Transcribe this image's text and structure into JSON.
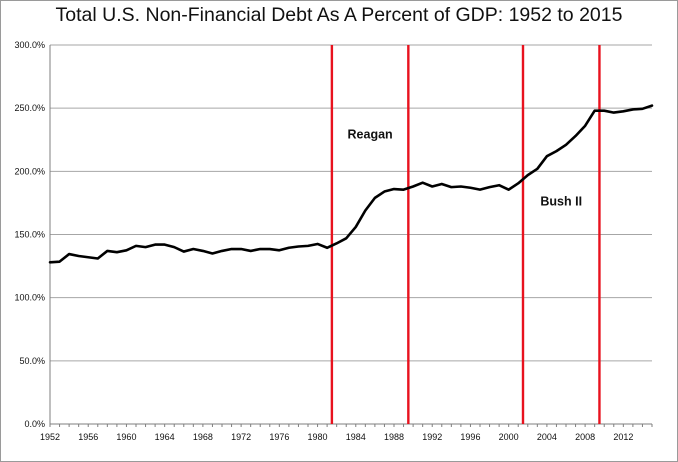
{
  "chart_data": {
    "type": "line",
    "title": "Total U.S. Non-Financial Debt As A Percent of GDP:  1952 to 2015",
    "xlabel": "",
    "ylabel": "",
    "xlim": [
      1952,
      2015
    ],
    "ylim": [
      0,
      300
    ],
    "grid": true,
    "legend": "none",
    "yticks": [
      "0.0%",
      "50.0%",
      "100.0%",
      "150.0%",
      "200.0%",
      "250.0%",
      "300.0%"
    ],
    "ytick_values": [
      0,
      50,
      100,
      150,
      200,
      250,
      300
    ],
    "xticks": [
      "1952",
      "1956",
      "1960",
      "1964",
      "1968",
      "1972",
      "1976",
      "1980",
      "1984",
      "1988",
      "1992",
      "1996",
      "2000",
      "2004",
      "2008",
      "2012"
    ],
    "xtick_values": [
      1952,
      1956,
      1960,
      1964,
      1968,
      1972,
      1976,
      1980,
      1984,
      1988,
      1992,
      1996,
      2000,
      2004,
      2008,
      2012
    ],
    "series": [
      {
        "x": [
          1952,
          1953,
          1954,
          1955,
          1956,
          1957,
          1958,
          1959,
          1960,
          1961,
          1962,
          1963,
          1964,
          1965,
          1966,
          1967,
          1968,
          1969,
          1970,
          1971,
          1972,
          1973,
          1974,
          1975,
          1976,
          1977,
          1978,
          1979,
          1980,
          1981,
          1982,
          1983,
          1984,
          1985,
          1986,
          1987,
          1988,
          1989,
          1990,
          1991,
          1992,
          1993,
          1994,
          1995,
          1996,
          1997,
          1998,
          1999,
          2000,
          2001,
          2002,
          2003,
          2004,
          2005,
          2006,
          2007,
          2008,
          2009,
          2010,
          2011,
          2012,
          2013,
          2014,
          2015
        ],
        "values": [
          128,
          128.5,
          134.5,
          133,
          132,
          131,
          137,
          136,
          137.5,
          141,
          140,
          142,
          142,
          140,
          136.5,
          138.5,
          137,
          135,
          137,
          138.5,
          138.5,
          137,
          138.5,
          138.5,
          137.5,
          139.5,
          140.5,
          141,
          142.5,
          139.5,
          143,
          147,
          156,
          169,
          179,
          184,
          186,
          185.5,
          188,
          191,
          188,
          190,
          187.5,
          188,
          187,
          185.5,
          187.5,
          189,
          185.5,
          190.5,
          197,
          202,
          212,
          216,
          221,
          228,
          236,
          248,
          248,
          246.5,
          247.5,
          249,
          249.5,
          252
        ]
      }
    ],
    "vlines": {
      "color": "#e8121e",
      "x": [
        1981.5,
        1989.5,
        2001.5,
        2009.5
      ]
    },
    "annotations": [
      {
        "text": "Reagan",
        "x": 1985.5,
        "y": 226
      },
      {
        "text": "Bush II",
        "x": 2005.5,
        "y": 173
      }
    ],
    "colors": {
      "line": "#000000",
      "grid": "#a6a6a6",
      "vline": "#e8121e"
    }
  }
}
